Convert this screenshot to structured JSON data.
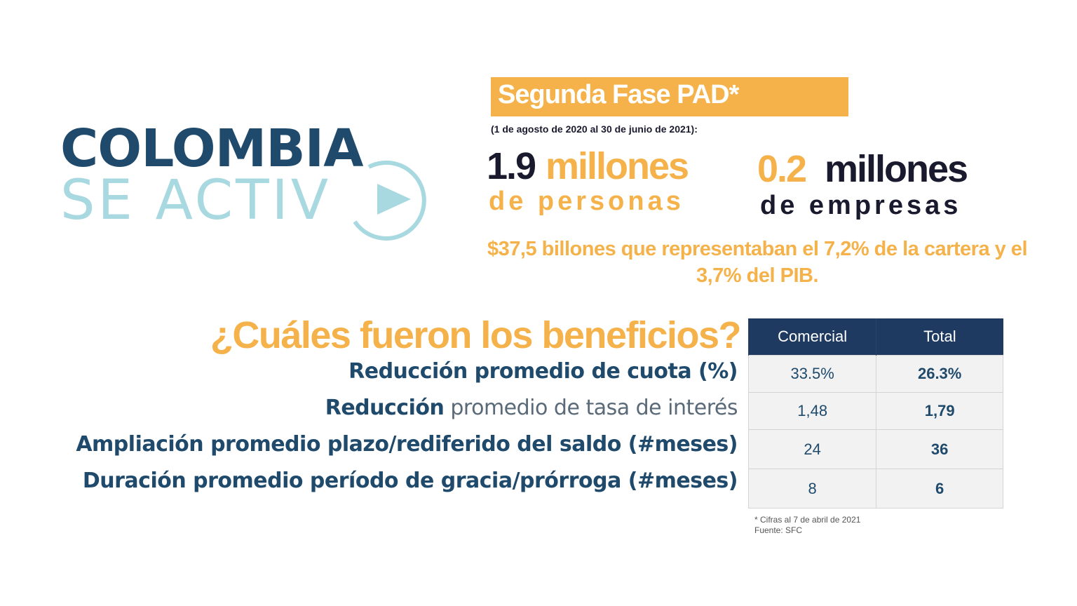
{
  "logo": {
    "line1": "COLOMBIA",
    "line2": "SE ACTIV",
    "play_icon": "play-circle-icon",
    "colors": {
      "dark": "#1f4a6c",
      "light": "#a8d8e0"
    }
  },
  "header": {
    "title": "Segunda Fase PAD*",
    "period": "(1 de agosto de 2020 al 30 de junio de 2021):"
  },
  "stats": [
    {
      "number": "1.9",
      "unit": "millones",
      "subtitle": "de personas"
    },
    {
      "number": "0.2",
      "unit": "millones",
      "subtitle": "de empresas"
    }
  ],
  "billions_text": "$37,5 billones que representaban el 7,2% de la cartera y el 3,7% del PIB.",
  "question": "¿Cuáles fueron los beneficios?",
  "benefits": {
    "row_labels": [
      {
        "bold": "Reducción promedio de cuota (%)",
        "light": ""
      },
      {
        "bold": "Reducción",
        "light": " promedio de tasa de interés"
      },
      {
        "bold": "Ampliación promedio plazo/rediferido del saldo (#meses)",
        "light": ""
      },
      {
        "bold": "Duración promedio período de gracia/prórroga (#meses)",
        "light": ""
      }
    ],
    "columns": [
      "Comercial",
      "Total"
    ],
    "rows": [
      [
        "33.5%",
        "26.3%"
      ],
      [
        "1,48",
        "1,79"
      ],
      [
        "24",
        "36"
      ],
      [
        "8",
        "6"
      ]
    ]
  },
  "footnote": {
    "line1": "* Cifras al 7 de abril de 2021",
    "line2": "Fuente: SFC"
  },
  "colors": {
    "accent": "#f5b24a",
    "navy": "#1f3a60",
    "text_dark": "#1a1a2e"
  }
}
